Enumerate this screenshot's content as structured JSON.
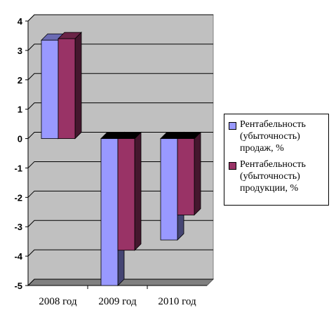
{
  "chart_data": {
    "type": "bar",
    "categories": [
      "2008 год",
      "2009 год",
      "2010 год"
    ],
    "series": [
      {
        "name": "Рентабельность\n(убыточность)\nпродаж, %",
        "values": [
          3.35,
          -5.0,
          -3.45
        ],
        "color": "#9999ff"
      },
      {
        "name": "Рентабельность\n(убыточность)\nпродукции, %",
        "values": [
          3.4,
          -3.8,
          -2.6
        ],
        "color": "#993366"
      }
    ],
    "ylim": [
      -5,
      4
    ],
    "yticks": [
      -5,
      -4,
      -3,
      -2,
      -1,
      0,
      1,
      2,
      3,
      4
    ],
    "grid": true,
    "legend_position": "right",
    "plot_color": "#c0c0c0"
  }
}
